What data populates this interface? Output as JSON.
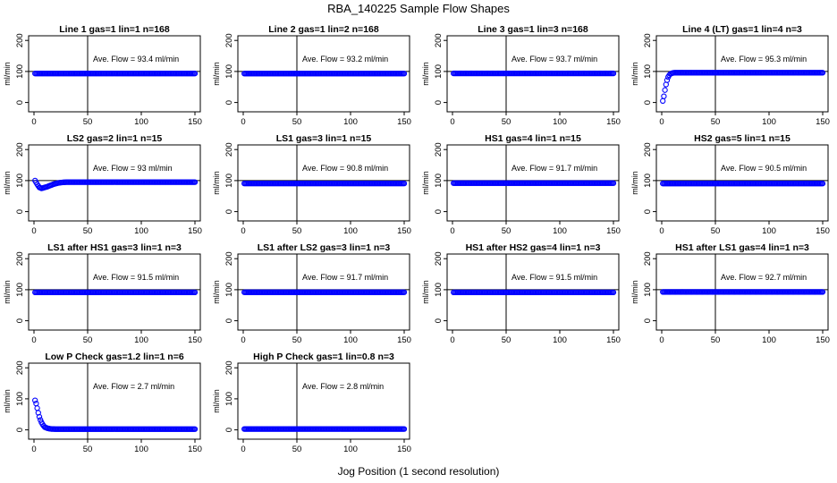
{
  "figure": {
    "title": "RBA_140225  Sample Flow Shapes",
    "xlabel": "Jog Position (1 second resolution)"
  },
  "style": {
    "point_color": "#0000ff",
    "axis_color": "#000000"
  },
  "chart_data": [
    {
      "type": "scatter",
      "title": "Line 1 gas=1 lin=1 n=168",
      "ylabel": "ml/min",
      "annotation": "Ave. Flow = 93.4  ml/min",
      "xlim": [
        0,
        150
      ],
      "ylim": [
        -30,
        215
      ],
      "xticks": [
        0,
        50,
        100,
        150
      ],
      "yticks": [
        0,
        100,
        200
      ],
      "hline": 100,
      "vline": 50,
      "series": [
        {
          "x": [
            1,
            150
          ],
          "y": [
            93.4,
            93.4
          ],
          "shape": "flat"
        }
      ]
    },
    {
      "type": "scatter",
      "title": "Line 2 gas=1 lin=2 n=168",
      "ylabel": "ml/min",
      "annotation": "Ave. Flow = 93.2  ml/min",
      "xlim": [
        0,
        150
      ],
      "ylim": [
        -30,
        215
      ],
      "xticks": [
        0,
        50,
        100,
        150
      ],
      "yticks": [
        0,
        100,
        200
      ],
      "hline": 100,
      "vline": 50,
      "series": [
        {
          "x": [
            1,
            150
          ],
          "y": [
            93.2,
            93.2
          ],
          "shape": "flat"
        }
      ]
    },
    {
      "type": "scatter",
      "title": "Line 3 gas=1 lin=3 n=168",
      "ylabel": "ml/min",
      "annotation": "Ave. Flow = 93.7  ml/min",
      "xlim": [
        0,
        150
      ],
      "ylim": [
        -30,
        215
      ],
      "xticks": [
        0,
        50,
        100,
        150
      ],
      "yticks": [
        0,
        100,
        200
      ],
      "hline": 100,
      "vline": 50,
      "series": [
        {
          "x": [
            1,
            150
          ],
          "y": [
            93.7,
            93.7
          ],
          "shape": "flat"
        }
      ]
    },
    {
      "type": "scatter",
      "title": "Line 4 (LT) gas=1 lin=4 n=3",
      "ylabel": "ml/min",
      "annotation": "Ave. Flow = 95.3  ml/min",
      "xlim": [
        0,
        150
      ],
      "ylim": [
        -30,
        215
      ],
      "xticks": [
        0,
        50,
        100,
        150
      ],
      "yticks": [
        0,
        100,
        200
      ],
      "hline": 100,
      "vline": 50,
      "series": [
        {
          "x": [
            1,
            2,
            3,
            4,
            5,
            6,
            7,
            8,
            10,
            12,
            150
          ],
          "y": [
            5,
            20,
            40,
            58,
            72,
            82,
            88,
            92,
            95,
            96,
            96
          ],
          "shape": "rise"
        }
      ]
    },
    {
      "type": "scatter",
      "title": "LS2 gas=2 lin=1 n=15",
      "ylabel": "ml/min",
      "annotation": "Ave. Flow = 93  ml/min",
      "xlim": [
        0,
        150
      ],
      "ylim": [
        -30,
        215
      ],
      "xticks": [
        0,
        50,
        100,
        150
      ],
      "yticks": [
        0,
        100,
        200
      ],
      "hline": 100,
      "vline": 50,
      "series": [
        {
          "x": [
            1,
            3,
            5,
            7,
            9,
            12,
            15,
            18,
            22,
            26,
            30,
            150
          ],
          "y": [
            100,
            88,
            78,
            75,
            77,
            80,
            84,
            88,
            92,
            94,
            95,
            95
          ],
          "shape": "dip"
        }
      ]
    },
    {
      "type": "scatter",
      "title": "LS1 gas=3 lin=1 n=15",
      "ylabel": "ml/min",
      "annotation": "Ave. Flow = 90.8  ml/min",
      "xlim": [
        0,
        150
      ],
      "ylim": [
        -30,
        215
      ],
      "xticks": [
        0,
        50,
        100,
        150
      ],
      "yticks": [
        0,
        100,
        200
      ],
      "hline": 100,
      "vline": 50,
      "series": [
        {
          "x": [
            1,
            150
          ],
          "y": [
            90.8,
            90.8
          ],
          "shape": "flat"
        }
      ]
    },
    {
      "type": "scatter",
      "title": "HS1 gas=4 lin=1 n=15",
      "ylabel": "ml/min",
      "annotation": "Ave. Flow = 91.7  ml/min",
      "xlim": [
        0,
        150
      ],
      "ylim": [
        -30,
        215
      ],
      "xticks": [
        0,
        50,
        100,
        150
      ],
      "yticks": [
        0,
        100,
        200
      ],
      "hline": 100,
      "vline": 50,
      "series": [
        {
          "x": [
            1,
            150
          ],
          "y": [
            91.7,
            91.7
          ],
          "shape": "flat"
        }
      ]
    },
    {
      "type": "scatter",
      "title": "HS2 gas=5 lin=1 n=15",
      "ylabel": "ml/min",
      "annotation": "Ave. Flow = 90.5  ml/min",
      "xlim": [
        0,
        150
      ],
      "ylim": [
        -30,
        215
      ],
      "xticks": [
        0,
        50,
        100,
        150
      ],
      "yticks": [
        0,
        100,
        200
      ],
      "hline": 100,
      "vline": 50,
      "series": [
        {
          "x": [
            1,
            150
          ],
          "y": [
            90.5,
            90.5
          ],
          "shape": "flat"
        }
      ]
    },
    {
      "type": "scatter",
      "title": "LS1 after HS1 gas=3 lin=1 n=3",
      "ylabel": "ml/min",
      "annotation": "Ave. Flow = 91.5  ml/min",
      "xlim": [
        0,
        150
      ],
      "ylim": [
        -30,
        215
      ],
      "xticks": [
        0,
        50,
        100,
        150
      ],
      "yticks": [
        0,
        100,
        200
      ],
      "hline": 100,
      "vline": 50,
      "series": [
        {
          "x": [
            1,
            150
          ],
          "y": [
            91.5,
            91.5
          ],
          "shape": "flat"
        }
      ]
    },
    {
      "type": "scatter",
      "title": "LS1 after LS2 gas=3 lin=1 n=3",
      "ylabel": "ml/min",
      "annotation": "Ave. Flow = 91.7  ml/min",
      "xlim": [
        0,
        150
      ],
      "ylim": [
        -30,
        215
      ],
      "xticks": [
        0,
        50,
        100,
        150
      ],
      "yticks": [
        0,
        100,
        200
      ],
      "hline": 100,
      "vline": 50,
      "series": [
        {
          "x": [
            1,
            150
          ],
          "y": [
            91.7,
            91.7
          ],
          "shape": "flat"
        }
      ]
    },
    {
      "type": "scatter",
      "title": "HS1 after HS2 gas=4 lin=1 n=3",
      "ylabel": "ml/min",
      "annotation": "Ave. Flow = 91.5  ml/min",
      "xlim": [
        0,
        150
      ],
      "ylim": [
        -30,
        215
      ],
      "xticks": [
        0,
        50,
        100,
        150
      ],
      "yticks": [
        0,
        100,
        200
      ],
      "hline": 100,
      "vline": 50,
      "series": [
        {
          "x": [
            1,
            150
          ],
          "y": [
            91.5,
            91.5
          ],
          "shape": "flat"
        }
      ]
    },
    {
      "type": "scatter",
      "title": "HS1 after LS1 gas=4 lin=1 n=3",
      "ylabel": "ml/min",
      "annotation": "Ave. Flow = 92.7  ml/min",
      "xlim": [
        0,
        150
      ],
      "ylim": [
        -30,
        215
      ],
      "xticks": [
        0,
        50,
        100,
        150
      ],
      "yticks": [
        0,
        100,
        200
      ],
      "hline": 100,
      "vline": 50,
      "series": [
        {
          "x": [
            1,
            150
          ],
          "y": [
            92.7,
            92.7
          ],
          "shape": "flat"
        }
      ]
    },
    {
      "type": "scatter",
      "title": "Low P Check gas=1.2 lin=1 n=6",
      "ylabel": "ml/min",
      "annotation": "Ave. Flow = 2.7  ml/min",
      "xlim": [
        0,
        150
      ],
      "ylim": [
        -30,
        215
      ],
      "xticks": [
        0,
        50,
        100,
        150
      ],
      "yticks": [
        0,
        100,
        200
      ],
      "hline": null,
      "vline": 50,
      "series": [
        {
          "x": [
            1,
            2,
            3,
            4,
            5,
            6,
            7,
            8,
            9,
            10,
            12,
            14,
            16,
            20,
            150
          ],
          "y": [
            95,
            85,
            70,
            55,
            42,
            32,
            24,
            18,
            13,
            9,
            6,
            4,
            3,
            2.5,
            2.5
          ],
          "shape": "decay"
        }
      ]
    },
    {
      "type": "scatter",
      "title": "High P Check gas=1 lin=0.8 n=3",
      "ylabel": "ml/min",
      "annotation": "Ave. Flow = 2.8  ml/min",
      "xlim": [
        0,
        150
      ],
      "ylim": [
        -30,
        215
      ],
      "xticks": [
        0,
        50,
        100,
        150
      ],
      "yticks": [
        0,
        100,
        200
      ],
      "hline": null,
      "vline": 50,
      "series": [
        {
          "x": [
            1,
            150
          ],
          "y": [
            2.8,
            2.8
          ],
          "shape": "flat"
        }
      ]
    }
  ]
}
